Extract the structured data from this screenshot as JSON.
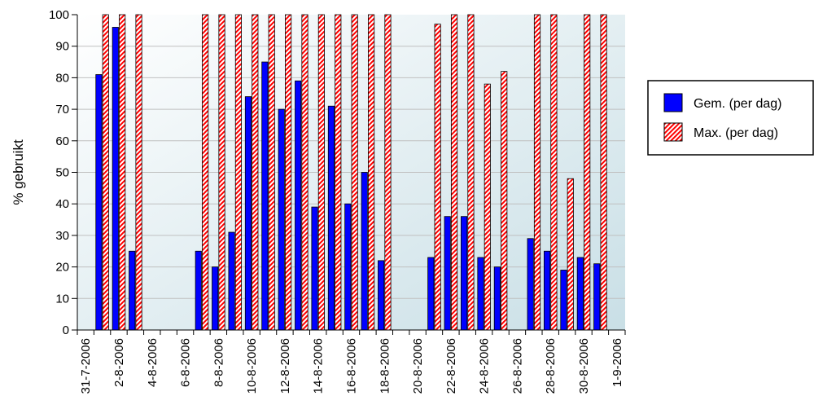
{
  "chart_data": {
    "type": "bar",
    "ylabel": "% gebruikt",
    "xlabel": "",
    "title": "",
    "ylim": [
      0,
      100
    ],
    "yticks": [
      0,
      10,
      20,
      30,
      40,
      50,
      60,
      70,
      80,
      90,
      100
    ],
    "grid": true,
    "legend_position": "right",
    "categories": [
      "31-7-2006",
      "1-8-2006",
      "2-8-2006",
      "3-8-2006",
      "4-8-2006",
      "5-8-2006",
      "6-8-2006",
      "7-8-2006",
      "8-8-2006",
      "9-8-2006",
      "10-8-2006",
      "11-8-2006",
      "12-8-2006",
      "13-8-2006",
      "14-8-2006",
      "15-8-2006",
      "16-8-2006",
      "17-8-2006",
      "18-8-2006",
      "19-8-2006",
      "20-8-2006",
      "21-8-2006",
      "22-8-2006",
      "23-8-2006",
      "24-8-2006",
      "25-8-2006",
      "26-8-2006",
      "27-8-2006",
      "28-8-2006",
      "29-8-2006",
      "30-8-2006",
      "31-8-2006",
      "1-9-2006"
    ],
    "tick_labels": [
      "31-7-2006",
      "2-8-2006",
      "4-8-2006",
      "6-8-2006",
      "8-8-2006",
      "10-8-2006",
      "12-8-2006",
      "14-8-2006",
      "16-8-2006",
      "18-8-2006",
      "20-8-2006",
      "22-8-2006",
      "24-8-2006",
      "26-8-2006",
      "28-8-2006",
      "30-8-2006",
      "1-9-2006"
    ],
    "series": [
      {
        "name": "Gem. (per dag)",
        "color": "#0000ff",
        "values": [
          0,
          81,
          96,
          25,
          0,
          0,
          0,
          25,
          20,
          31,
          74,
          85,
          70,
          79,
          39,
          71,
          40,
          50,
          22,
          0,
          0,
          23,
          36,
          36,
          23,
          20,
          0,
          29,
          25,
          19,
          23,
          21,
          0
        ]
      },
      {
        "name": "Max. (per dag)",
        "color": "#ff0000",
        "values": [
          0,
          100,
          100,
          100,
          0,
          0,
          0,
          100,
          100,
          100,
          100,
          100,
          100,
          100,
          100,
          100,
          100,
          100,
          100,
          0,
          0,
          97,
          100,
          100,
          78,
          82,
          0,
          100,
          100,
          48,
          100,
          100,
          0
        ]
      }
    ]
  }
}
